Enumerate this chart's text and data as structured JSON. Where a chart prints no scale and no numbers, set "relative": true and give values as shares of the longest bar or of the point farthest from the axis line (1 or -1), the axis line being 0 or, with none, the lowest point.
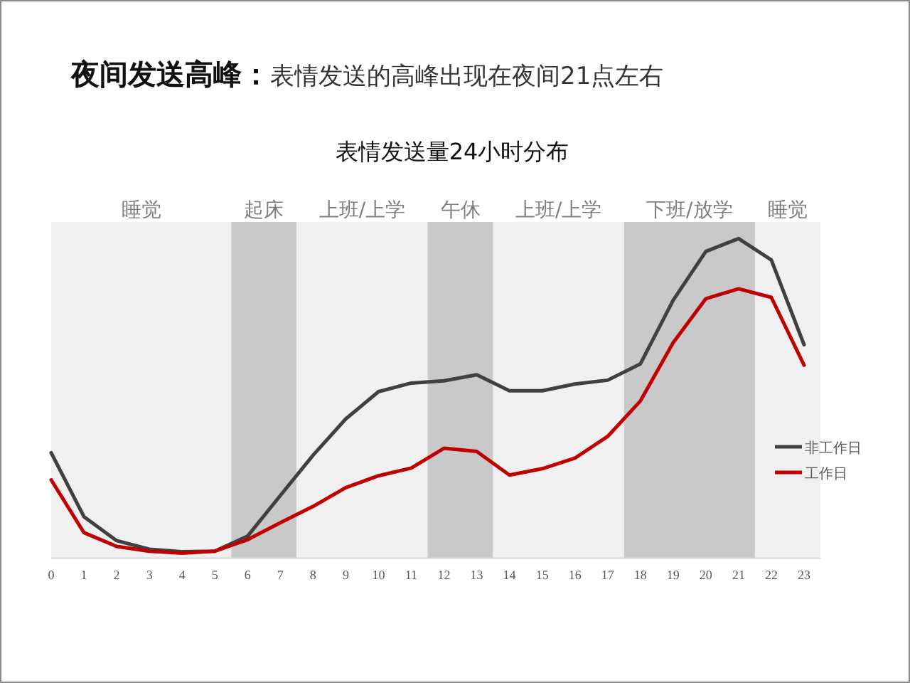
{
  "chart_data": {
    "type": "line",
    "title": "**夜间发送高峰：**表情发送的高峰出现在夜间21点左右",
    "subtitle": "表情发送量24小时分布",
    "relative": true,
    "tick_labels": "x",
    "legend": "right",
    "line_style": "solid",
    "x": [
      0,
      1,
      2,
      3,
      4,
      5,
      6,
      7,
      8,
      9,
      10,
      11,
      12,
      13,
      14,
      15,
      16,
      17,
      18,
      19,
      20,
      21,
      22,
      23
    ],
    "xlim": [
      0,
      23.5
    ],
    "xticks": [
      0,
      1,
      2,
      3,
      4,
      5,
      6,
      7,
      8,
      9,
      10,
      11,
      12,
      13,
      14,
      15,
      16,
      17,
      18,
      19,
      20,
      21,
      22,
      23
    ],
    "series": [
      {
        "name": "非工作日",
        "color": "#404040",
        "values": [
          0.33,
          0.13,
          0.055,
          0.028,
          0.02,
          0.022,
          0.069,
          0.196,
          0.322,
          0.436,
          0.521,
          0.548,
          0.555,
          0.574,
          0.524,
          0.524,
          0.545,
          0.557,
          0.608,
          0.807,
          0.96,
          1,
          0.933,
          0.668
        ]
      },
      {
        "name": "工作日",
        "color": "#c00000",
        "values": [
          0.245,
          0.08,
          0.037,
          0.022,
          0.016,
          0.022,
          0.058,
          0.111,
          0.162,
          0.221,
          0.258,
          0.282,
          0.344,
          0.334,
          0.26,
          0.28,
          0.313,
          0.381,
          0.492,
          0.674,
          0.812,
          0.843,
          0.816,
          0.604
        ]
      }
    ],
    "bands": [
      {
        "axis": "x",
        "from": 0,
        "to": 5.5,
        "label": "睡觉",
        "color": "#f0f0f0"
      },
      {
        "axis": "x",
        "from": 5.5,
        "to": 7.5,
        "label": "起床",
        "color": "#c9c9c9"
      },
      {
        "axis": "x",
        "from": 7.5,
        "to": 11.5,
        "label": "上班/上学",
        "color": "#f0f0f0"
      },
      {
        "axis": "x",
        "from": 11.5,
        "to": 13.5,
        "label": "午休",
        "color": "#c9c9c9"
      },
      {
        "axis": "x",
        "from": 13.5,
        "to": 17.5,
        "label": "上班/上学",
        "color": "#f0f0f0"
      },
      {
        "axis": "x",
        "from": 17.5,
        "to": 21.5,
        "label": "下班/放学",
        "color": "#c9c9c9"
      },
      {
        "axis": "x",
        "from": 21.5,
        "to": 23.5,
        "label": "睡觉",
        "color": "#f0f0f0"
      }
    ]
  }
}
